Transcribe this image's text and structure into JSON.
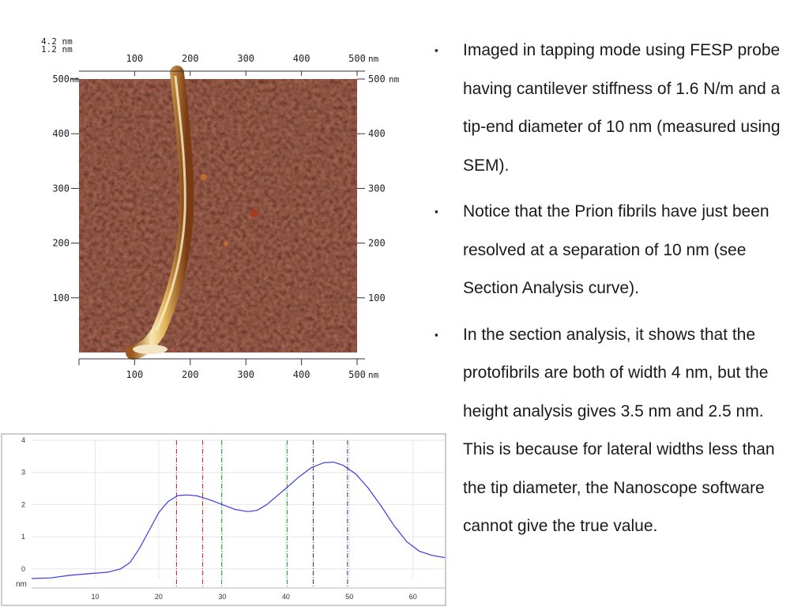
{
  "afm": {
    "z_scale_top": "4.2 nm",
    "z_scale_bottom": "1.2 nm",
    "x_unit": "nm",
    "y_unit": "nm",
    "x_ticks": [
      "100",
      "200",
      "300",
      "400",
      "500"
    ],
    "y_ticks": [
      "500",
      "400",
      "300",
      "200",
      "100"
    ],
    "colors": {
      "background": "#4e1410",
      "fibril": "#e2b45a",
      "fibril_highlight": "#f7e7b0"
    }
  },
  "chart_data": {
    "type": "line",
    "title": "",
    "xlabel": "",
    "ylabel": "nm",
    "xlim": [
      0,
      65
    ],
    "ylim": [
      -0.3,
      4
    ],
    "x_ticks": [
      10,
      20,
      30,
      40,
      50,
      60
    ],
    "y_ticks": [
      0,
      1,
      2,
      3,
      4
    ],
    "grid": true,
    "series": [
      {
        "color": "#3b3be6",
        "x": [
          0,
          3,
          6,
          9,
          12,
          14,
          15.5,
          17,
          18.5,
          20,
          21.5,
          23,
          24.5,
          26,
          28,
          30,
          32,
          34,
          35.5,
          37,
          38.5,
          40,
          42,
          44,
          46,
          47.5,
          49,
          51,
          53,
          55,
          57,
          59,
          61,
          63,
          65
        ],
        "y": [
          -0.3,
          -0.28,
          -0.2,
          -0.15,
          -0.1,
          0,
          0.2,
          0.65,
          1.2,
          1.75,
          2.1,
          2.28,
          2.3,
          2.27,
          2.15,
          2.0,
          1.85,
          1.78,
          1.82,
          2.0,
          2.25,
          2.5,
          2.85,
          3.15,
          3.3,
          3.32,
          3.22,
          2.95,
          2.5,
          1.95,
          1.35,
          0.85,
          0.55,
          0.42,
          0.35
        ]
      }
    ],
    "markers": [
      {
        "x": 22.8,
        "color": "#cc2222"
      },
      {
        "x": 26.9,
        "color": "#cc2222"
      },
      {
        "x": 29.9,
        "color": "#2a9a2a"
      },
      {
        "x": 40.2,
        "color": "#2a9a2a"
      },
      {
        "x": 44.3,
        "color": "#2a2ab0"
      },
      {
        "x": 49.7,
        "color": "#2a2ab0"
      }
    ]
  },
  "bullets": [
    "Imaged in tapping mode using FESP probe having cantilever stiffness of 1.6 N/m and a tip-end diameter of 10 nm (measured using SEM).",
    "Notice that the Prion fibrils have just been resolved at a separation of 10 nm (see Section Analysis curve).",
    "In the section analysis, it shows that the protofibrils are both of width 4 nm, but the height analysis gives 3.5 nm and 2.5 nm. This is because for lateral widths less than the tip diameter, the Nanoscope software cannot give the true value."
  ],
  "bullet_symbol": "▪"
}
